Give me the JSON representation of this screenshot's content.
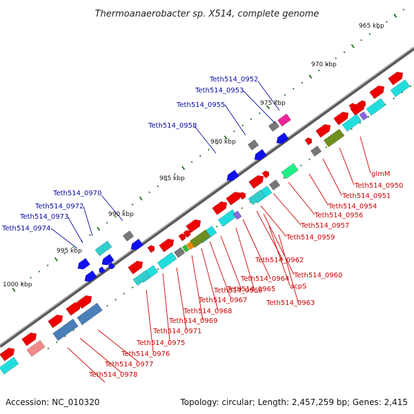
{
  "title": "Thermoanaerobacter sp. X514, complete genome",
  "footer": {
    "accession": "Accession: NC_010320",
    "summary": "Topology: circular; Length: 2,457,259 bp; Genes: 2,415"
  },
  "scale_labels": [
    "965 kbp",
    "970 kbp",
    "975 kbp",
    "980 kbp",
    "985 kbp",
    "990 kbp",
    "995 kbp",
    "1000 kbp"
  ],
  "upper_labels": [
    "Teth514_0952",
    "Teth514_0953",
    "Teth514_0955",
    "Teth514_0958",
    "Teth514_0970",
    "Teth514_0972",
    "Teth514_0973",
    "Teth514_0974"
  ],
  "lower_labels": [
    "glmM",
    "Teth514_0950",
    "Teth514_0951",
    "Teth514_0954",
    "Teth514_0956",
    "Teth514_0957",
    "Teth514_0959",
    "Teth514_0962",
    "Teth514_0960",
    "Teth514_0964",
    "acpS",
    "Teth514_0965",
    "Teth514_0963",
    "Teth514_0966",
    "Teth514_0967",
    "Teth514_0968",
    "Teth514_0969",
    "Teth514_0971",
    "Teth514_0975",
    "Teth514_0976",
    "Teth514_0977",
    "Teth514_0978"
  ],
  "colors": {
    "upper_label": "#0a0aa0",
    "lower_label": "#cc0000",
    "backbone": "#777777",
    "tick": "#2a7a2a",
    "red": "#ee0000",
    "cyan": "#22dddd",
    "blue": "#1010ee",
    "olive": "#6e8e1e",
    "steel": "#4a7fb8",
    "grey": "#777777",
    "magenta": "#ee2299",
    "green": "#22ee88",
    "purple": "#8866dd",
    "salmon": "#f28a8a",
    "teal": "#33cccc"
  }
}
